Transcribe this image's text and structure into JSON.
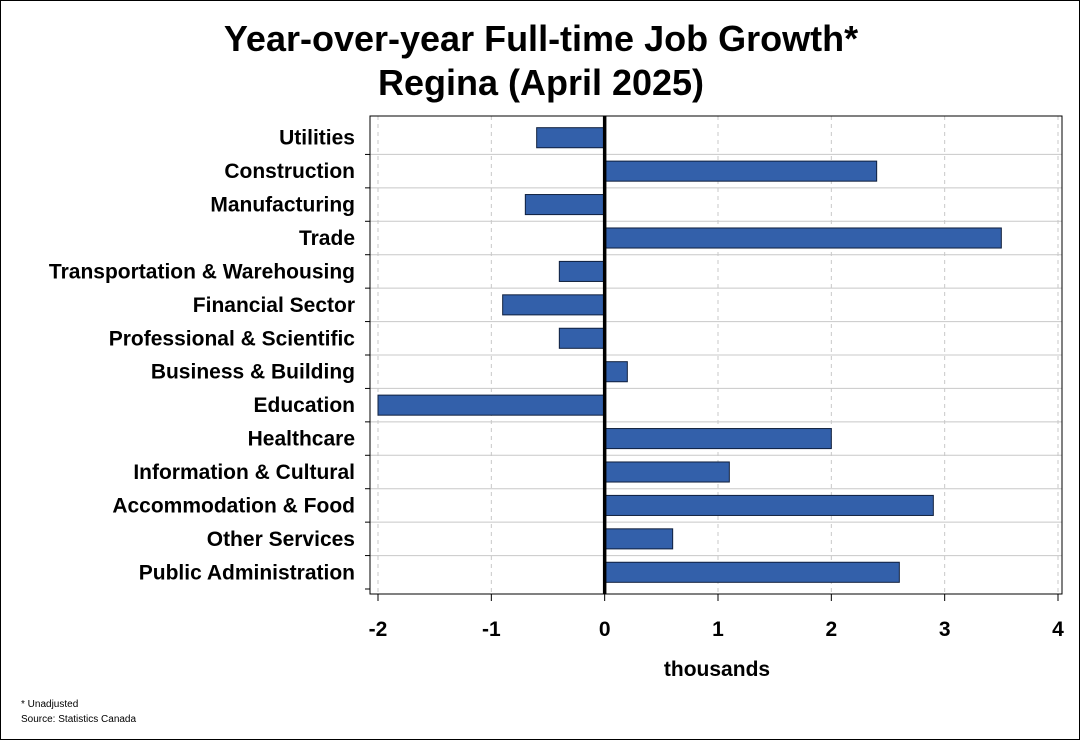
{
  "chart_data": {
    "type": "bar",
    "orientation": "horizontal",
    "title": "Year-over-year Full-time Job Growth*",
    "subtitle": "Regina (April 2025)",
    "xlabel": "thousands",
    "ylabel": "",
    "xlim": [
      -2,
      4
    ],
    "xticks": [
      -2,
      -1,
      0,
      1,
      2,
      3,
      4
    ],
    "categories": [
      "Utilities",
      "Construction",
      "Manufacturing",
      "Trade",
      "Transportation & Warehousing",
      "Financial Sector",
      "Professional & Scientific",
      "Business & Building",
      "Education",
      "Healthcare",
      "Information & Cultural",
      "Accommodation & Food",
      "Other Services",
      "Public Administration"
    ],
    "values": [
      -0.6,
      2.4,
      -0.7,
      3.5,
      -0.4,
      -0.9,
      -0.4,
      0.2,
      -2.0,
      2.0,
      1.1,
      2.9,
      0.6,
      2.6
    ],
    "grid": true,
    "bar_color": "#3360aa",
    "bar_edge_color": "#0f1f3d"
  },
  "footnotes": {
    "note": "* Unadjusted",
    "source": "Source: Statistics Canada"
  }
}
